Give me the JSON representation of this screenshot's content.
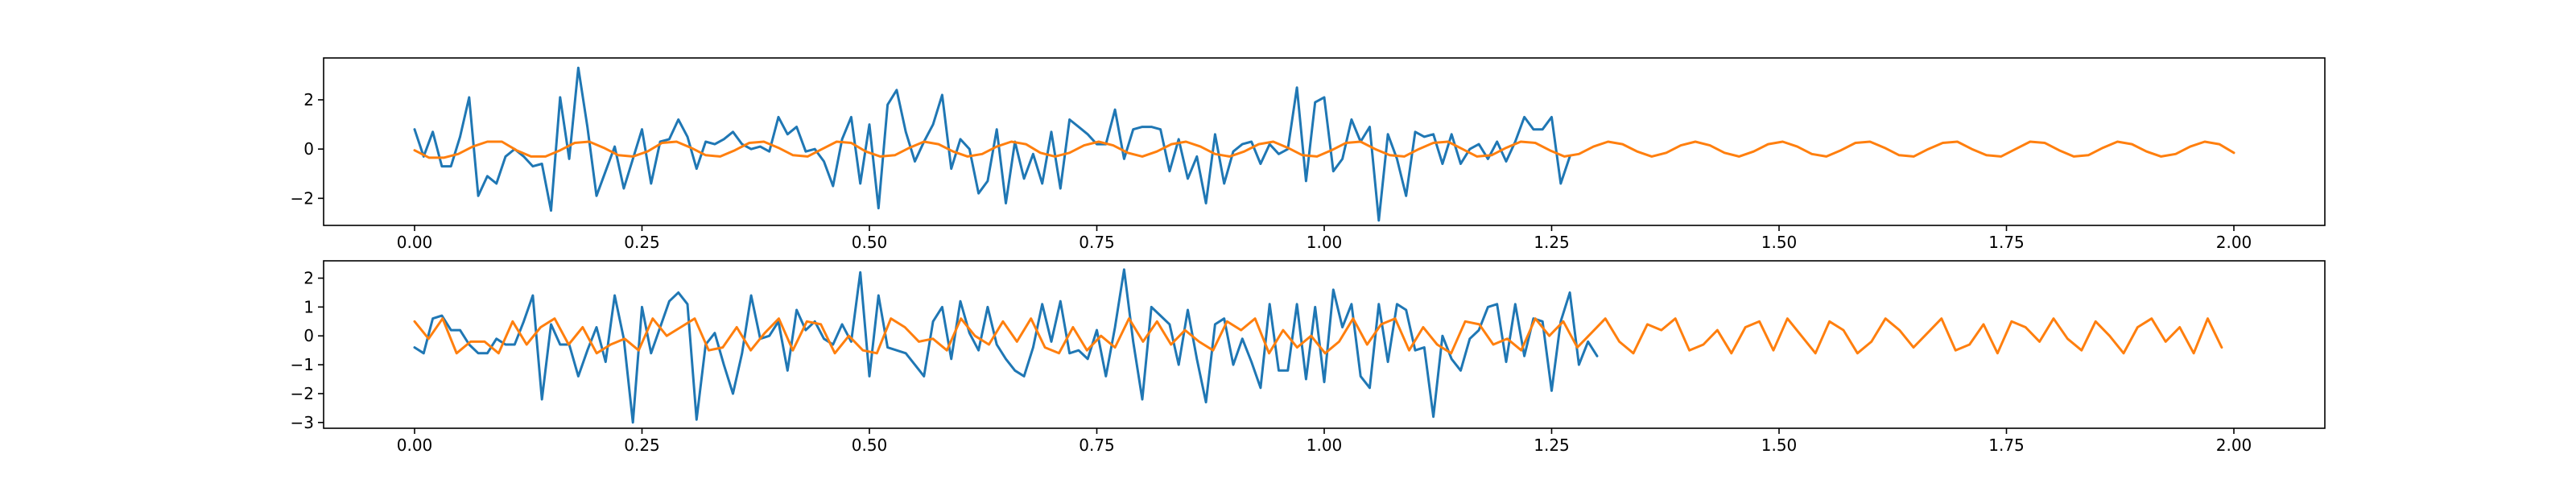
{
  "colors": {
    "series_0": "#1f77b4",
    "series_1": "#ff7f0e",
    "axes": "#000000",
    "background": "#ffffff"
  },
  "chart_data": [
    {
      "type": "line",
      "title": "",
      "xlabel": "",
      "ylabel": "",
      "xlim": [
        -0.1,
        2.1
      ],
      "ylim": [
        -3.1,
        3.7
      ],
      "grid": false,
      "legend": "none",
      "x_ticks": [
        0.0,
        0.25,
        0.5,
        0.75,
        1.0,
        1.25,
        1.5,
        1.75,
        2.0
      ],
      "x_tick_labels": [
        "0.00",
        "0.25",
        "0.50",
        "0.75",
        "1.00",
        "1.25",
        "1.50",
        "1.75",
        "2.00"
      ],
      "y_ticks": [
        -2,
        0,
        2
      ],
      "y_tick_labels": [
        "−2",
        "0",
        "2"
      ],
      "series": [
        {
          "color": "#1f77b4",
          "x_start": 0.0,
          "x_step": 0.01,
          "values": [
            0.8,
            -0.3,
            0.7,
            -0.7,
            -0.7,
            0.5,
            2.1,
            -1.9,
            -1.1,
            -1.4,
            -0.3,
            0.0,
            -0.3,
            -0.7,
            -0.6,
            -2.5,
            2.1,
            -0.4,
            3.3,
            0.9,
            -1.9,
            -0.9,
            0.1,
            -1.6,
            -0.4,
            0.8,
            -1.4,
            0.3,
            0.4,
            1.2,
            0.5,
            -0.8,
            0.3,
            0.2,
            0.4,
            0.7,
            0.2,
            0.0,
            0.1,
            -0.1,
            1.3,
            0.6,
            0.9,
            -0.1,
            0.0,
            -0.5,
            -1.5,
            0.4,
            1.3,
            -1.4,
            1.0,
            -2.4,
            1.8,
            2.4,
            0.7,
            -0.5,
            0.3,
            1.0,
            2.2,
            -0.8,
            0.4,
            0.0,
            -1.8,
            -1.3,
            0.8,
            -2.2,
            0.3,
            -1.2,
            -0.2,
            -1.4,
            0.7,
            -1.6,
            1.2,
            0.9,
            0.6,
            0.2,
            0.2,
            1.6,
            -0.4,
            0.8,
            0.9,
            0.9,
            0.8,
            -0.9,
            0.4,
            -1.2,
            -0.3,
            -2.2,
            0.6,
            -1.4,
            -0.1,
            0.2,
            0.3,
            -0.6,
            0.2,
            -0.2,
            0.0,
            2.5,
            -1.3,
            1.9,
            2.1,
            -0.9,
            -0.4,
            1.2,
            0.3,
            0.9,
            -2.9,
            0.6,
            -0.4,
            -1.9,
            0.7,
            0.5,
            0.6,
            -0.6,
            0.6,
            -0.6,
            0.0,
            0.2,
            -0.4,
            0.3,
            -0.5,
            0.3,
            1.3,
            0.8,
            0.8,
            1.3,
            -1.4,
            -0.3
          ]
        },
        {
          "color": "#ff7f0e",
          "x_start": 0.0,
          "x_step": 0.016,
          "values": [
            -0.05,
            -0.35,
            -0.35,
            -0.2,
            0.1,
            0.3,
            0.3,
            -0.05,
            -0.3,
            -0.3,
            -0.05,
            0.25,
            0.3,
            0.05,
            -0.25,
            -0.3,
            -0.1,
            0.25,
            0.3,
            0.05,
            -0.25,
            -0.3,
            -0.05,
            0.25,
            0.3,
            0.05,
            -0.25,
            -0.3,
            0.0,
            0.3,
            0.25,
            -0.1,
            -0.3,
            -0.25,
            0.05,
            0.3,
            0.2,
            -0.1,
            -0.3,
            -0.2,
            0.1,
            0.3,
            0.2,
            -0.15,
            -0.3,
            -0.15,
            0.15,
            0.3,
            0.15,
            -0.15,
            -0.3,
            -0.1,
            0.2,
            0.3,
            0.1,
            -0.2,
            -0.3,
            -0.1,
            0.2,
            0.3,
            0.05,
            -0.25,
            -0.3,
            -0.05,
            0.25,
            0.3,
            0.0,
            -0.25,
            -0.3,
            0.0,
            0.25,
            0.3,
            0.0,
            -0.3,
            -0.25,
            0.05,
            0.3,
            0.25,
            -0.05,
            -0.3,
            -0.2,
            0.1,
            0.3,
            0.2,
            -0.1,
            -0.3,
            -0.15,
            0.15,
            0.3,
            0.15,
            -0.15,
            -0.3,
            -0.1,
            0.2,
            0.3,
            0.1,
            -0.2,
            -0.3,
            -0.05,
            0.25,
            0.3,
            0.05,
            -0.25,
            -0.3,
            0.0,
            0.25,
            0.3,
            0.0,
            -0.25,
            -0.3,
            0.0,
            0.3,
            0.25,
            -0.05,
            -0.3,
            -0.25,
            0.05,
            0.3,
            0.2,
            -0.1,
            -0.3,
            -0.2,
            0.1,
            0.3,
            0.2,
            -0.15
          ]
        }
      ]
    },
    {
      "type": "line",
      "title": "",
      "xlabel": "",
      "ylabel": "",
      "xlim": [
        -0.1,
        2.1
      ],
      "ylim": [
        -3.2,
        2.6
      ],
      "grid": false,
      "legend": "none",
      "x_ticks": [
        0.0,
        0.25,
        0.5,
        0.75,
        1.0,
        1.25,
        1.5,
        1.75,
        2.0
      ],
      "x_tick_labels": [
        "0.00",
        "0.25",
        "0.50",
        "0.75",
        "1.00",
        "1.25",
        "1.50",
        "1.75",
        "2.00"
      ],
      "y_ticks": [
        -3,
        -2,
        -1,
        0,
        1,
        2
      ],
      "y_tick_labels": [
        "−3",
        "−2",
        "−1",
        "0",
        "1",
        "2"
      ],
      "series": [
        {
          "color": "#1f77b4",
          "x_start": 0.0,
          "x_step": 0.01,
          "values": [
            -0.4,
            -0.6,
            0.6,
            0.7,
            0.2,
            0.2,
            -0.3,
            -0.6,
            -0.6,
            -0.1,
            -0.3,
            -0.3,
            0.5,
            1.4,
            -2.2,
            0.4,
            -0.3,
            -0.3,
            -1.4,
            -0.5,
            0.3,
            -0.9,
            1.4,
            -0.1,
            -3.0,
            1.0,
            -0.6,
            0.3,
            1.2,
            1.5,
            1.1,
            -2.9,
            -0.3,
            0.1,
            -1.0,
            -2.0,
            -0.6,
            1.4,
            -0.1,
            0.0,
            0.5,
            -1.2,
            0.9,
            0.2,
            0.5,
            -0.1,
            -0.3,
            0.4,
            -0.2,
            2.2,
            -1.4,
            1.4,
            -0.4,
            -0.5,
            -0.6,
            -1.0,
            -1.4,
            0.5,
            1.0,
            -0.8,
            1.2,
            0.1,
            -0.5,
            1.0,
            -0.3,
            -0.8,
            -1.2,
            -1.4,
            -0.4,
            1.1,
            -0.2,
            1.2,
            -0.6,
            -0.5,
            -0.8,
            0.2,
            -1.4,
            0.3,
            2.3,
            -0.2,
            -2.2,
            1.0,
            0.7,
            0.4,
            -1.0,
            0.9,
            -0.8,
            -2.3,
            0.4,
            0.6,
            -1.0,
            -0.1,
            -0.9,
            -1.8,
            1.1,
            -1.2,
            -1.2,
            1.1,
            -1.5,
            1.0,
            -1.6,
            1.6,
            0.3,
            1.1,
            -1.4,
            -1.8,
            1.1,
            -0.9,
            1.1,
            0.9,
            -0.5,
            -0.4,
            -2.8,
            0.0,
            -0.8,
            -1.2,
            -0.1,
            0.2,
            1.0,
            1.1,
            -0.9,
            1.1,
            -0.7,
            0.6,
            0.5,
            -1.9,
            0.5,
            1.5,
            -1.0,
            -0.2,
            -0.7
          ]
        },
        {
          "color": "#ff7f0e",
          "x_start": 0.0,
          "x_step": 0.0154,
          "values": [
            0.5,
            -0.1,
            0.6,
            -0.6,
            -0.2,
            -0.2,
            -0.6,
            0.5,
            -0.3,
            0.3,
            0.6,
            -0.3,
            0.3,
            -0.6,
            -0.3,
            -0.1,
            -0.5,
            0.6,
            0.0,
            0.3,
            0.6,
            -0.5,
            -0.4,
            0.3,
            -0.5,
            0.1,
            0.6,
            -0.5,
            0.5,
            0.4,
            -0.6,
            0.0,
            -0.5,
            -0.6,
            0.6,
            0.3,
            -0.2,
            -0.1,
            -0.5,
            0.6,
            0.0,
            -0.3,
            0.5,
            -0.2,
            0.6,
            -0.4,
            -0.6,
            0.3,
            -0.5,
            0.0,
            -0.4,
            0.6,
            -0.2,
            0.5,
            -0.3,
            0.2,
            -0.2,
            -0.5,
            0.5,
            0.2,
            0.6,
            -0.6,
            0.2,
            -0.4,
            0.0,
            -0.6,
            -0.2,
            0.6,
            -0.3,
            0.4,
            0.6,
            -0.5,
            0.3,
            -0.3,
            -0.6,
            0.5,
            0.4,
            -0.3,
            -0.1,
            -0.5,
            0.6,
            0.0,
            0.5,
            -0.4,
            0.1,
            0.6,
            -0.2,
            -0.6,
            0.4,
            0.2,
            0.6,
            -0.5,
            -0.3,
            0.2,
            -0.6,
            0.3,
            0.5,
            -0.5,
            0.6,
            0.0,
            -0.6,
            0.5,
            0.2,
            -0.6,
            -0.2,
            0.6,
            0.2,
            -0.4,
            0.1,
            0.6,
            -0.5,
            -0.3,
            0.4,
            -0.6,
            0.5,
            0.3,
            -0.2,
            0.6,
            -0.1,
            -0.5,
            0.5,
            0.0,
            -0.6,
            0.3,
            0.6,
            -0.2,
            0.3,
            -0.6,
            0.6,
            -0.4
          ]
        }
      ]
    }
  ]
}
